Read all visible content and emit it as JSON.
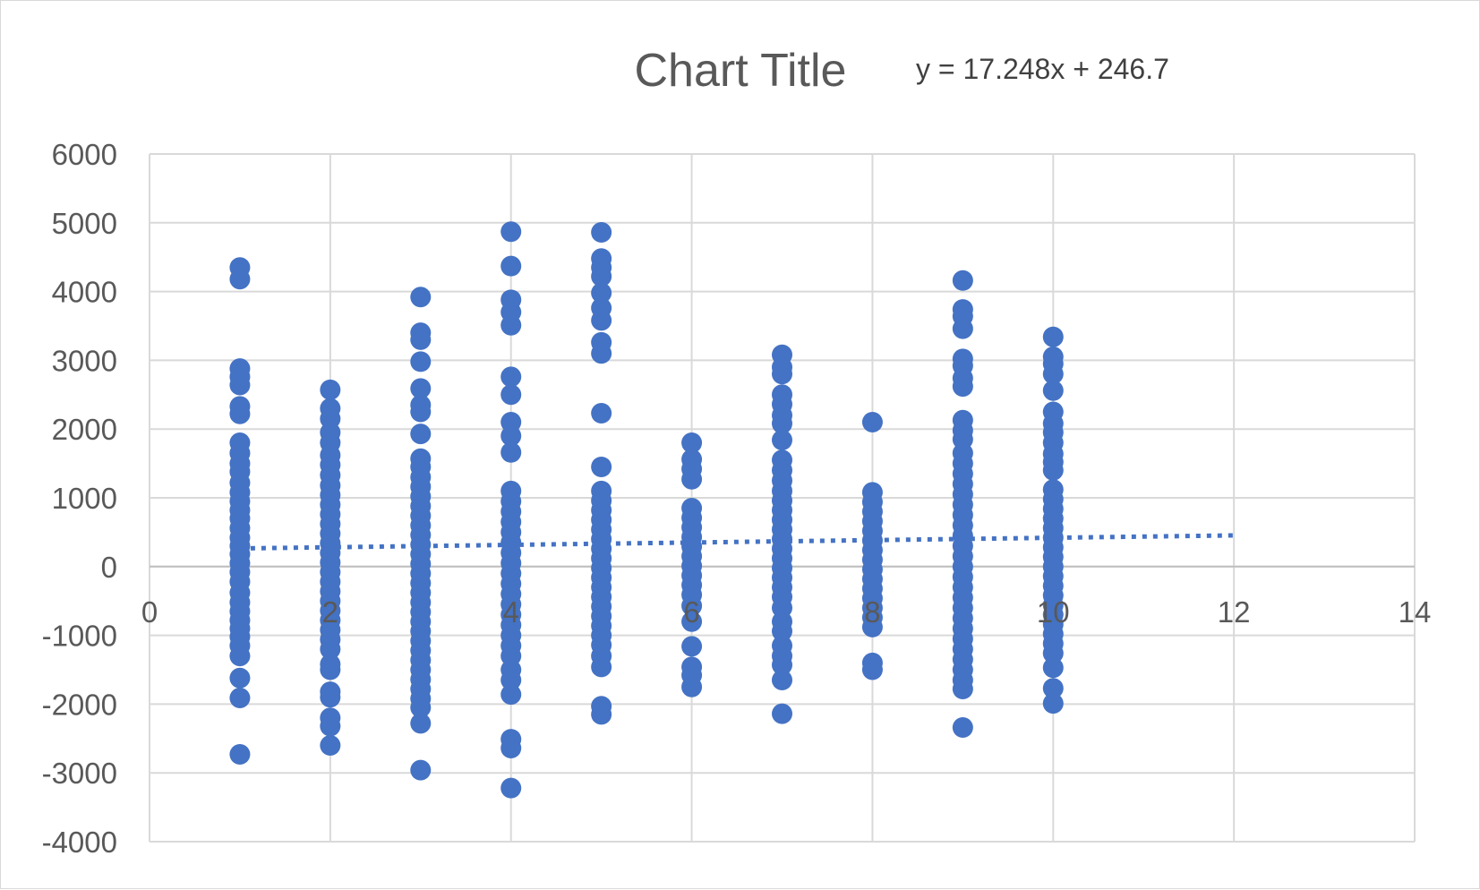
{
  "chart_data": {
    "type": "scatter",
    "title": "Chart Title",
    "trendline": {
      "type": "linear",
      "style": "dotted",
      "equation_label": "y = 17.248x + 246.7",
      "slope": 17.248,
      "intercept": 246.7,
      "x_range": [
        1,
        12
      ]
    },
    "xlim": [
      0,
      14
    ],
    "ylim": [
      -4000,
      6000
    ],
    "x_ticks": [
      0,
      2,
      4,
      6,
      8,
      10,
      12,
      14
    ],
    "y_ticks": [
      6000,
      5000,
      4000,
      3000,
      2000,
      1000,
      0,
      -1000,
      -2000,
      -3000,
      -4000
    ],
    "grid": true,
    "legend": "none",
    "colors": {
      "marker": "#4472C4",
      "trend": "#4472C4"
    },
    "series": [
      {
        "points": [
          [
            1,
            4350
          ],
          [
            1,
            4180
          ],
          [
            1,
            2880
          ],
          [
            1,
            2760
          ],
          [
            1,
            2640
          ],
          [
            1,
            2330
          ],
          [
            1,
            2220
          ],
          [
            1,
            1800
          ],
          [
            1,
            1650
          ],
          [
            1,
            1500
          ],
          [
            1,
            1380
          ],
          [
            1,
            1220
          ],
          [
            1,
            1080
          ],
          [
            1,
            950
          ],
          [
            1,
            820
          ],
          [
            1,
            700
          ],
          [
            1,
            560
          ],
          [
            1,
            420
          ],
          [
            1,
            300
          ],
          [
            1,
            180
          ],
          [
            1,
            50
          ],
          [
            1,
            -80
          ],
          [
            1,
            -220
          ],
          [
            1,
            -380
          ],
          [
            1,
            -520
          ],
          [
            1,
            -650
          ],
          [
            1,
            -780
          ],
          [
            1,
            -900
          ],
          [
            1,
            -1020
          ],
          [
            1,
            -1150
          ],
          [
            1,
            -1300
          ],
          [
            1,
            -1620
          ],
          [
            1,
            -1910
          ],
          [
            1,
            -2730
          ],
          [
            2,
            2570
          ],
          [
            2,
            2300
          ],
          [
            2,
            2150
          ],
          [
            2,
            1950
          ],
          [
            2,
            1800
          ],
          [
            2,
            1620
          ],
          [
            2,
            1480
          ],
          [
            2,
            1330
          ],
          [
            2,
            1180
          ],
          [
            2,
            1040
          ],
          [
            2,
            900
          ],
          [
            2,
            760
          ],
          [
            2,
            620
          ],
          [
            2,
            480
          ],
          [
            2,
            340
          ],
          [
            2,
            200
          ],
          [
            2,
            60
          ],
          [
            2,
            -80
          ],
          [
            2,
            -220
          ],
          [
            2,
            -360
          ],
          [
            2,
            -500
          ],
          [
            2,
            -640
          ],
          [
            2,
            -780
          ],
          [
            2,
            -920
          ],
          [
            2,
            -1060
          ],
          [
            2,
            -1200
          ],
          [
            2,
            -1420
          ],
          [
            2,
            -1500
          ],
          [
            2,
            -1820
          ],
          [
            2,
            -1900
          ],
          [
            2,
            -2200
          ],
          [
            2,
            -2320
          ],
          [
            2,
            -2600
          ],
          [
            3,
            3920
          ],
          [
            3,
            3400
          ],
          [
            3,
            3300
          ],
          [
            3,
            2980
          ],
          [
            3,
            2590
          ],
          [
            3,
            2350
          ],
          [
            3,
            2250
          ],
          [
            3,
            1930
          ],
          [
            3,
            1570
          ],
          [
            3,
            1450
          ],
          [
            3,
            1300
          ],
          [
            3,
            1160
          ],
          [
            3,
            1020
          ],
          [
            3,
            880
          ],
          [
            3,
            740
          ],
          [
            3,
            600
          ],
          [
            3,
            460
          ],
          [
            3,
            320
          ],
          [
            3,
            180
          ],
          [
            3,
            40
          ],
          [
            3,
            -100
          ],
          [
            3,
            -240
          ],
          [
            3,
            -380
          ],
          [
            3,
            -520
          ],
          [
            3,
            -660
          ],
          [
            3,
            -800
          ],
          [
            3,
            -940
          ],
          [
            3,
            -1080
          ],
          [
            3,
            -1220
          ],
          [
            3,
            -1360
          ],
          [
            3,
            -1500
          ],
          [
            3,
            -1640
          ],
          [
            3,
            -1780
          ],
          [
            3,
            -1920
          ],
          [
            3,
            -2050
          ],
          [
            3,
            -2280
          ],
          [
            3,
            -2960
          ],
          [
            4,
            4870
          ],
          [
            4,
            4370
          ],
          [
            4,
            3880
          ],
          [
            4,
            3700
          ],
          [
            4,
            3510
          ],
          [
            4,
            2760
          ],
          [
            4,
            2500
          ],
          [
            4,
            2100
          ],
          [
            4,
            1900
          ],
          [
            4,
            1660
          ],
          [
            4,
            1100
          ],
          [
            4,
            950
          ],
          [
            4,
            800
          ],
          [
            4,
            650
          ],
          [
            4,
            500
          ],
          [
            4,
            350
          ],
          [
            4,
            200
          ],
          [
            4,
            50
          ],
          [
            4,
            -100
          ],
          [
            4,
            -250
          ],
          [
            4,
            -400
          ],
          [
            4,
            -550
          ],
          [
            4,
            -700
          ],
          [
            4,
            -850
          ],
          [
            4,
            -1000
          ],
          [
            4,
            -1150
          ],
          [
            4,
            -1300
          ],
          [
            4,
            -1500
          ],
          [
            4,
            -1650
          ],
          [
            4,
            -1860
          ],
          [
            4,
            -2510
          ],
          [
            4,
            -2640
          ],
          [
            4,
            -3220
          ],
          [
            5,
            4860
          ],
          [
            5,
            4480
          ],
          [
            5,
            4350
          ],
          [
            5,
            4220
          ],
          [
            5,
            3980
          ],
          [
            5,
            3760
          ],
          [
            5,
            3580
          ],
          [
            5,
            3260
          ],
          [
            5,
            3100
          ],
          [
            5,
            2230
          ],
          [
            5,
            1450
          ],
          [
            5,
            1100
          ],
          [
            5,
            960
          ],
          [
            5,
            820
          ],
          [
            5,
            680
          ],
          [
            5,
            540
          ],
          [
            5,
            400
          ],
          [
            5,
            260
          ],
          [
            5,
            120
          ],
          [
            5,
            -20
          ],
          [
            5,
            -160
          ],
          [
            5,
            -300
          ],
          [
            5,
            -440
          ],
          [
            5,
            -580
          ],
          [
            5,
            -720
          ],
          [
            5,
            -860
          ],
          [
            5,
            -1000
          ],
          [
            5,
            -1140
          ],
          [
            5,
            -1300
          ],
          [
            5,
            -1460
          ],
          [
            5,
            -2030
          ],
          [
            5,
            -2150
          ],
          [
            6,
            1800
          ],
          [
            6,
            1560
          ],
          [
            6,
            1420
          ],
          [
            6,
            1270
          ],
          [
            6,
            850
          ],
          [
            6,
            710
          ],
          [
            6,
            570
          ],
          [
            6,
            430
          ],
          [
            6,
            290
          ],
          [
            6,
            150
          ],
          [
            6,
            10
          ],
          [
            6,
            -130
          ],
          [
            6,
            -270
          ],
          [
            6,
            -410
          ],
          [
            6,
            -570
          ],
          [
            6,
            -800
          ],
          [
            6,
            -1160
          ],
          [
            6,
            -1460
          ],
          [
            6,
            -1580
          ],
          [
            6,
            -1750
          ],
          [
            7,
            3080
          ],
          [
            7,
            2900
          ],
          [
            7,
            2800
          ],
          [
            7,
            2500
          ],
          [
            7,
            2360
          ],
          [
            7,
            2200
          ],
          [
            7,
            2080
          ],
          [
            7,
            1840
          ],
          [
            7,
            1550
          ],
          [
            7,
            1400
          ],
          [
            7,
            1250
          ],
          [
            7,
            1100
          ],
          [
            7,
            960
          ],
          [
            7,
            820
          ],
          [
            7,
            680
          ],
          [
            7,
            540
          ],
          [
            7,
            400
          ],
          [
            7,
            260
          ],
          [
            7,
            120
          ],
          [
            7,
            -20
          ],
          [
            7,
            -160
          ],
          [
            7,
            -300
          ],
          [
            7,
            -440
          ],
          [
            7,
            -600
          ],
          [
            7,
            -800
          ],
          [
            7,
            -940
          ],
          [
            7,
            -1150
          ],
          [
            7,
            -1300
          ],
          [
            7,
            -1430
          ],
          [
            7,
            -1650
          ],
          [
            7,
            -2140
          ],
          [
            8,
            2100
          ],
          [
            8,
            1080
          ],
          [
            8,
            940
          ],
          [
            8,
            800
          ],
          [
            8,
            660
          ],
          [
            8,
            520
          ],
          [
            8,
            380
          ],
          [
            8,
            240
          ],
          [
            8,
            100
          ],
          [
            8,
            -40
          ],
          [
            8,
            -180
          ],
          [
            8,
            -320
          ],
          [
            8,
            -460
          ],
          [
            8,
            -600
          ],
          [
            8,
            -740
          ],
          [
            8,
            -880
          ],
          [
            8,
            -1400
          ],
          [
            8,
            -1500
          ],
          [
            9,
            4160
          ],
          [
            9,
            3740
          ],
          [
            9,
            3640
          ],
          [
            9,
            3460
          ],
          [
            9,
            3020
          ],
          [
            9,
            2920
          ],
          [
            9,
            2740
          ],
          [
            9,
            2620
          ],
          [
            9,
            2130
          ],
          [
            9,
            1980
          ],
          [
            9,
            1850
          ],
          [
            9,
            1650
          ],
          [
            9,
            1500
          ],
          [
            9,
            1350
          ],
          [
            9,
            1200
          ],
          [
            9,
            1050
          ],
          [
            9,
            900
          ],
          [
            9,
            750
          ],
          [
            9,
            600
          ],
          [
            9,
            450
          ],
          [
            9,
            300
          ],
          [
            9,
            150
          ],
          [
            9,
            0
          ],
          [
            9,
            -150
          ],
          [
            9,
            -300
          ],
          [
            9,
            -450
          ],
          [
            9,
            -600
          ],
          [
            9,
            -750
          ],
          [
            9,
            -900
          ],
          [
            9,
            -1050
          ],
          [
            9,
            -1200
          ],
          [
            9,
            -1350
          ],
          [
            9,
            -1500
          ],
          [
            9,
            -1650
          ],
          [
            9,
            -1780
          ],
          [
            9,
            -2340
          ],
          [
            10,
            3340
          ],
          [
            10,
            3050
          ],
          [
            10,
            2950
          ],
          [
            10,
            2800
          ],
          [
            10,
            2560
          ],
          [
            10,
            2250
          ],
          [
            10,
            2080
          ],
          [
            10,
            1950
          ],
          [
            10,
            1800
          ],
          [
            10,
            1640
          ],
          [
            10,
            1520
          ],
          [
            10,
            1400
          ],
          [
            10,
            1120
          ],
          [
            10,
            980
          ],
          [
            10,
            840
          ],
          [
            10,
            700
          ],
          [
            10,
            560
          ],
          [
            10,
            420
          ],
          [
            10,
            280
          ],
          [
            10,
            140
          ],
          [
            10,
            0
          ],
          [
            10,
            -140
          ],
          [
            10,
            -280
          ],
          [
            10,
            -420
          ],
          [
            10,
            -560
          ],
          [
            10,
            -700
          ],
          [
            10,
            -840
          ],
          [
            10,
            -980
          ],
          [
            10,
            -1120
          ],
          [
            10,
            -1260
          ],
          [
            10,
            -1470
          ],
          [
            10,
            -1770
          ],
          [
            10,
            -1990
          ]
        ]
      }
    ]
  }
}
